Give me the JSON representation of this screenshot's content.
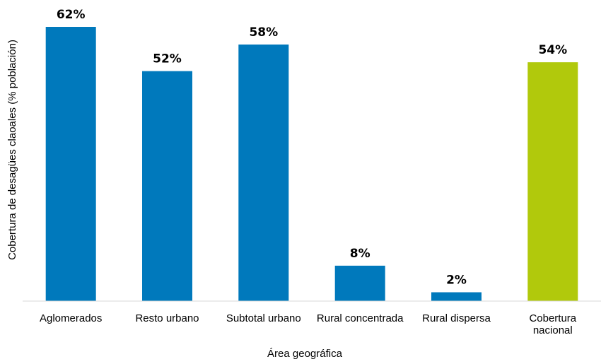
{
  "chart_data": {
    "type": "bar",
    "categories": [
      [
        "Aglomerados"
      ],
      [
        "Resto urbano"
      ],
      [
        "Subtotal urbano"
      ],
      [
        "Rural concentrada"
      ],
      [
        "Rural dispersa"
      ],
      [
        "Cobertura",
        "nacional"
      ]
    ],
    "values": [
      62,
      52,
      58,
      8,
      2,
      54
    ],
    "value_labels": [
      "62%",
      "52%",
      "58%",
      "8%",
      "2%",
      "54%"
    ],
    "bar_colors": [
      "#0079BC",
      "#0079BC",
      "#0079BC",
      "#0079BC",
      "#0079BC",
      "#B1C90C"
    ],
    "xlabel": "Área geográfica",
    "ylabel": "Cobertura de desagües claoales (% población)",
    "ylim": [
      0,
      62
    ],
    "grid": false,
    "legend": "none"
  }
}
